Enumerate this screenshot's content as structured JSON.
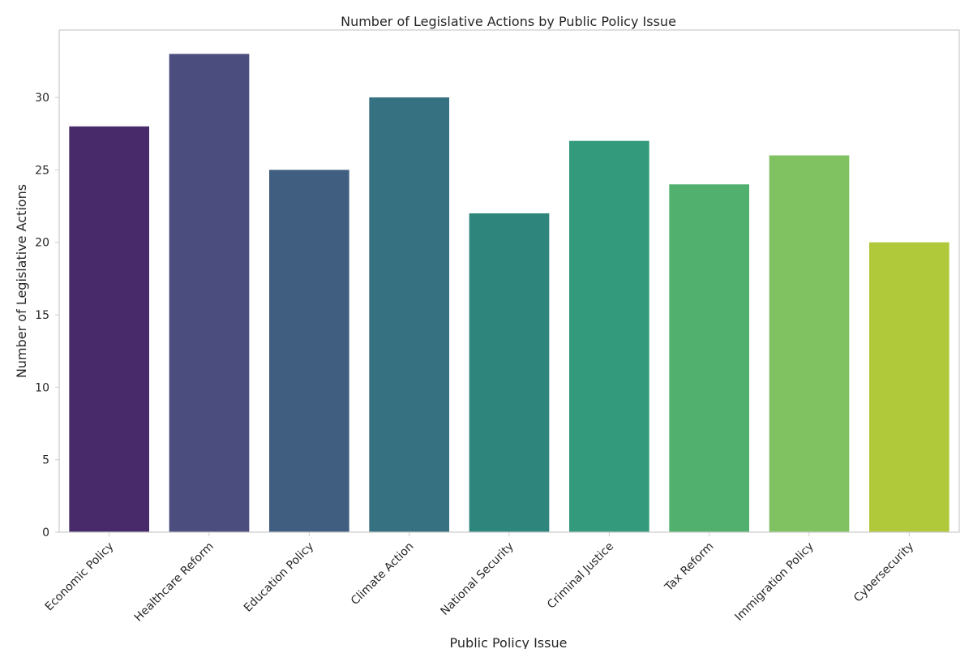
{
  "chart_data": {
    "type": "bar",
    "title": "Number of Legislative Actions by Public Policy Issue",
    "xlabel": "Public Policy Issue",
    "ylabel": "Number of Legislative Actions",
    "categories": [
      "Economic Policy",
      "Healthcare Reform",
      "Education Policy",
      "Climate Action",
      "National Security",
      "Criminal Justice",
      "Tax Reform",
      "Immigration Policy",
      "Cybersecurity"
    ],
    "values": [
      28,
      33,
      25,
      30,
      22,
      27,
      24,
      26,
      20
    ],
    "colors": [
      "#482a6a",
      "#4a4d7d",
      "#405e80",
      "#357180",
      "#2e857c",
      "#339a7c",
      "#52b06f",
      "#80c262",
      "#b0c93b"
    ],
    "ylim": [
      0,
      34.65
    ],
    "yticks": [
      0,
      5,
      10,
      15,
      20,
      25,
      30
    ],
    "grid": false,
    "frame_color": "#cccccc"
  }
}
